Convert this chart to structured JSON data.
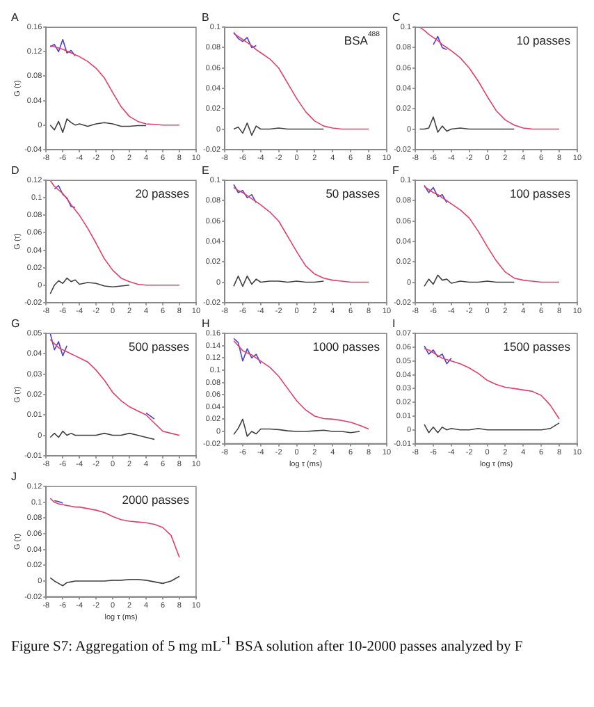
{
  "chart_data": [
    {
      "type": "line",
      "title": "A",
      "ylabel": "G (τ)",
      "x": [
        -7.5,
        -7,
        -6.5,
        -6,
        -5.5,
        -5,
        -4.5,
        -4,
        -3,
        -2,
        -1,
        0,
        1,
        2,
        3,
        4,
        5,
        6,
        7,
        8
      ],
      "xlim": [
        -8,
        10
      ],
      "xticks": [
        -8,
        -6,
        -4,
        -2,
        0,
        2,
        4,
        6,
        8,
        10
      ],
      "ylim": [
        -0.04,
        0.16
      ],
      "yticks": [
        -0.04,
        0,
        0.04,
        0.08,
        0.12,
        0.16
      ],
      "grid": false,
      "legend": false,
      "marker": "none",
      "series": [
        {
          "color": "#e0406a",
          "values": [
            0.13,
            0.128,
            0.126,
            0.124,
            0.121,
            0.118,
            0.115,
            0.112,
            0.104,
            0.093,
            0.077,
            0.053,
            0.03,
            0.014,
            0.006,
            0.002,
            0.001,
            0,
            0,
            0
          ]
        },
        {
          "color": "#4a3fd0",
          "values": [
            0.128,
            0.132,
            0.12,
            0.14,
            0.118,
            0.122,
            0.113,
            null,
            null,
            null,
            null,
            null,
            null,
            null,
            null,
            null,
            null,
            null,
            null,
            null
          ]
        },
        {
          "color": "#404040",
          "values": [
            0,
            -0.008,
            0.006,
            -0.012,
            0.01,
            0.004,
            0,
            0.002,
            -0.002,
            0.002,
            0.004,
            0.002,
            -0.002,
            -0.002,
            -0.001,
            -0.001,
            null,
            null,
            null,
            null
          ]
        }
      ]
    },
    {
      "type": "line",
      "title": "B",
      "annotations": [
        "BSA$^{488}$"
      ],
      "x": [
        -7,
        -6.5,
        -6,
        -5.5,
        -5,
        -4.5,
        -4,
        -3,
        -2,
        -1,
        0,
        1,
        2,
        3,
        4,
        5,
        6,
        7,
        8
      ],
      "xlim": [
        -8,
        10
      ],
      "xticks": [
        -8,
        -6,
        -4,
        -2,
        0,
        2,
        4,
        6,
        8,
        10
      ],
      "ylim": [
        -0.02,
        0.1
      ],
      "yticks": [
        -0.02,
        0,
        0.02,
        0.04,
        0.06,
        0.08,
        0.1
      ],
      "grid": false,
      "legend": false,
      "marker": "none",
      "series": [
        {
          "color": "#e0406a",
          "values": [
            0.094,
            0.091,
            0.088,
            0.085,
            0.082,
            0.078,
            0.075,
            0.069,
            0.06,
            0.045,
            0.03,
            0.017,
            0.008,
            0.003,
            0.001,
            0,
            0,
            0,
            0
          ]
        },
        {
          "color": "#4a3fd0",
          "values": [
            0.095,
            0.089,
            0.086,
            0.09,
            0.08,
            0.082,
            null,
            null,
            null,
            null,
            null,
            null,
            null,
            null,
            null,
            null,
            null,
            null,
            null
          ]
        },
        {
          "color": "#404040",
          "values": [
            0,
            0.002,
            -0.004,
            0.006,
            -0.006,
            0.003,
            0,
            0,
            0.001,
            0,
            0,
            0,
            0,
            0,
            null,
            null,
            null,
            null,
            null
          ]
        }
      ]
    },
    {
      "type": "line",
      "title": "C",
      "annotations": [
        "10 passes"
      ],
      "x": [
        -7.5,
        -7,
        -6.5,
        -6,
        -5.5,
        -5,
        -4.5,
        -4,
        -3,
        -2,
        -1,
        0,
        1,
        2,
        3,
        4,
        5,
        6,
        7,
        8
      ],
      "xlim": [
        -8,
        10
      ],
      "xticks": [
        -8,
        -6,
        -4,
        -2,
        0,
        2,
        4,
        6,
        8,
        10
      ],
      "ylim": [
        -0.02,
        0.1
      ],
      "yticks": [
        -0.02,
        0,
        0.02,
        0.04,
        0.06,
        0.08,
        0.1
      ],
      "grid": false,
      "legend": false,
      "marker": "none",
      "series": [
        {
          "color": "#e0406a",
          "values": [
            0.1,
            0.097,
            0.093,
            0.09,
            0.087,
            0.083,
            0.08,
            0.077,
            0.07,
            0.06,
            0.047,
            0.032,
            0.018,
            0.009,
            0.004,
            0.001,
            0,
            0,
            0,
            0
          ]
        },
        {
          "color": "#4a3fd0",
          "values": [
            null,
            null,
            null,
            0.083,
            0.091,
            0.08,
            0.078,
            null,
            null,
            null,
            null,
            null,
            null,
            null,
            null,
            null,
            null,
            null,
            null,
            null
          ]
        },
        {
          "color": "#404040",
          "values": [
            0,
            0,
            0.001,
            0.012,
            -0.003,
            0.003,
            -0.002,
            0,
            0.001,
            0,
            0,
            0,
            0,
            0,
            0,
            null,
            null,
            null,
            null,
            null
          ]
        }
      ]
    },
    {
      "type": "line",
      "title": "D",
      "ylabel": "G (τ)",
      "annotations": [
        "20 passes"
      ],
      "x": [
        -7.5,
        -7,
        -6.5,
        -6,
        -5.5,
        -5,
        -4.5,
        -4,
        -3,
        -2,
        -1,
        0,
        1,
        2,
        3,
        4,
        5,
        6,
        7,
        8
      ],
      "xlim": [
        -8,
        10
      ],
      "xticks": [
        -8,
        -6,
        -4,
        -2,
        0,
        2,
        4,
        6,
        8,
        10
      ],
      "ylim": [
        -0.02,
        0.12
      ],
      "yticks": [
        -0.02,
        0,
        0.02,
        0.04,
        0.06,
        0.08,
        0.1,
        0.12
      ],
      "grid": false,
      "legend": false,
      "marker": "none",
      "series": [
        {
          "color": "#e0406a",
          "values": [
            0.12,
            0.113,
            0.109,
            0.105,
            0.099,
            0.092,
            0.086,
            0.08,
            0.065,
            0.048,
            0.03,
            0.017,
            0.008,
            0.004,
            0.001,
            0,
            0,
            0,
            0,
            0
          ]
        },
        {
          "color": "#4a3fd0",
          "values": [
            null,
            0.11,
            0.114,
            0.104,
            0.1,
            0.09,
            0.089,
            null,
            null,
            null,
            null,
            null,
            null,
            null,
            null,
            null,
            null,
            null,
            null,
            null
          ]
        },
        {
          "color": "#404040",
          "values": [
            -0.01,
            0,
            0.005,
            0.002,
            0.008,
            0.004,
            0.006,
            0.001,
            0.003,
            0.002,
            -0.001,
            -0.002,
            -0.001,
            0,
            null,
            null,
            null,
            null,
            null,
            null
          ]
        }
      ]
    },
    {
      "type": "line",
      "title": "E",
      "annotations": [
        "50 passes"
      ],
      "x": [
        -7,
        -6.5,
        -6,
        -5.5,
        -5,
        -4.5,
        -4,
        -3,
        -2,
        -1,
        0,
        1,
        2,
        3,
        4,
        5,
        6,
        7,
        8
      ],
      "xlim": [
        -8,
        10
      ],
      "xticks": [
        -8,
        -6,
        -4,
        -2,
        0,
        2,
        4,
        6,
        8,
        10
      ],
      "ylim": [
        -0.02,
        0.1
      ],
      "yticks": [
        -0.02,
        0,
        0.02,
        0.04,
        0.06,
        0.08,
        0.1
      ],
      "grid": false,
      "legend": false,
      "marker": "none",
      "series": [
        {
          "color": "#e0406a",
          "values": [
            0.093,
            0.09,
            0.088,
            0.085,
            0.082,
            0.079,
            0.076,
            0.069,
            0.06,
            0.045,
            0.03,
            0.016,
            0.008,
            0.004,
            0.002,
            0.001,
            0,
            0,
            0
          ]
        },
        {
          "color": "#4a3fd0",
          "values": [
            0.096,
            0.088,
            0.09,
            0.083,
            0.086,
            0.078,
            null,
            null,
            null,
            null,
            null,
            null,
            null,
            null,
            null,
            null,
            null,
            null,
            null
          ]
        },
        {
          "color": "#404040",
          "values": [
            -0.004,
            0.006,
            -0.004,
            0.006,
            -0.002,
            0.003,
            0,
            0.001,
            0.001,
            0,
            0.001,
            0,
            0,
            0.001,
            null,
            null,
            null,
            null,
            null
          ]
        }
      ]
    },
    {
      "type": "line",
      "title": "F",
      "annotations": [
        "100 passes"
      ],
      "x": [
        -7,
        -6.5,
        -6,
        -5.5,
        -5,
        -4.5,
        -4,
        -3,
        -2,
        -1,
        0,
        1,
        2,
        3,
        4,
        5,
        6,
        7,
        8
      ],
      "xlim": [
        -8,
        10
      ],
      "xticks": [
        -8,
        -6,
        -4,
        -2,
        0,
        2,
        4,
        6,
        8,
        10
      ],
      "ylim": [
        -0.02,
        0.1
      ],
      "yticks": [
        -0.02,
        0,
        0.02,
        0.04,
        0.06,
        0.08,
        0.1
      ],
      "grid": false,
      "legend": false,
      "marker": "none",
      "series": [
        {
          "color": "#e0406a",
          "values": [
            0.094,
            0.091,
            0.088,
            0.086,
            0.083,
            0.08,
            0.077,
            0.071,
            0.063,
            0.05,
            0.035,
            0.021,
            0.01,
            0.004,
            0.002,
            0.001,
            0,
            0,
            0
          ]
        },
        {
          "color": "#4a3fd0",
          "values": [
            0.095,
            0.088,
            0.093,
            0.084,
            0.086,
            0.078,
            null,
            null,
            null,
            null,
            null,
            null,
            null,
            null,
            null,
            null,
            null,
            null,
            null
          ]
        },
        {
          "color": "#404040",
          "values": [
            -0.004,
            0.003,
            -0.002,
            0.007,
            0.002,
            0.003,
            -0.001,
            0.001,
            0,
            0,
            0.001,
            0,
            0,
            0,
            null,
            null,
            null,
            null,
            null
          ]
        }
      ]
    },
    {
      "type": "line",
      "title": "G",
      "ylabel": "G (τ)",
      "annotations": [
        "500 passes"
      ],
      "x": [
        -7.5,
        -7,
        -6.5,
        -6,
        -5.5,
        -5,
        -4.5,
        -4,
        -3,
        -2,
        -1,
        0,
        1,
        2,
        3,
        4,
        5,
        6,
        7,
        8
      ],
      "xlim": [
        -8,
        10
      ],
      "xticks": [
        -8,
        -6,
        -4,
        -2,
        0,
        2,
        4,
        6,
        8,
        10
      ],
      "ylim": [
        -0.01,
        0.05
      ],
      "yticks": [
        -0.01,
        0,
        0.01,
        0.02,
        0.03,
        0.04,
        0.05
      ],
      "grid": false,
      "legend": false,
      "marker": "none",
      "series": [
        {
          "color": "#e0406a",
          "values": [
            0.047,
            0.045,
            0.043,
            0.042,
            0.041,
            0.04,
            0.039,
            0.038,
            0.036,
            0.032,
            0.027,
            0.021,
            0.017,
            0.014,
            0.012,
            0.01,
            0.006,
            0.002,
            0.001,
            0
          ]
        },
        {
          "color": "#4a3fd0",
          "values": [
            0.05,
            0.042,
            0.046,
            0.039,
            0.044,
            null,
            null,
            null,
            null,
            null,
            null,
            null,
            null,
            null,
            null,
            0.011,
            0.008,
            null,
            null,
            null
          ]
        },
        {
          "color": "#404040",
          "values": [
            -0.001,
            0.001,
            -0.001,
            0.002,
            0,
            0.001,
            0,
            0,
            0,
            0,
            0.001,
            0,
            0,
            0.001,
            0,
            -0.001,
            -0.002,
            null,
            null,
            null
          ]
        }
      ]
    },
    {
      "type": "line",
      "title": "H",
      "xlabel": "log τ (ms)",
      "annotations": [
        "1000 passes"
      ],
      "x": [
        -7,
        -6.5,
        -6,
        -5.5,
        -5,
        -4.5,
        -4,
        -3,
        -2,
        -1,
        0,
        1,
        2,
        3,
        4,
        5,
        6,
        7,
        8
      ],
      "xlim": [
        -8,
        10
      ],
      "xticks": [
        -8,
        -6,
        -4,
        -2,
        0,
        2,
        4,
        6,
        8,
        10
      ],
      "ylim": [
        -0.02,
        0.16
      ],
      "yticks": [
        -0.02,
        0,
        0.02,
        0.04,
        0.06,
        0.08,
        0.1,
        0.12,
        0.14,
        0.16
      ],
      "grid": false,
      "legend": false,
      "marker": "none",
      "series": [
        {
          "color": "#e0406a",
          "values": [
            0.148,
            0.14,
            0.132,
            0.128,
            0.125,
            0.12,
            0.115,
            0.105,
            0.09,
            0.07,
            0.05,
            0.035,
            0.025,
            0.021,
            0.02,
            0.018,
            0.015,
            0.01,
            0.004
          ]
        },
        {
          "color": "#4a3fd0",
          "values": [
            0.152,
            0.145,
            0.115,
            0.135,
            0.12,
            0.126,
            0.111,
            null,
            null,
            null,
            null,
            null,
            null,
            null,
            null,
            null,
            null,
            null,
            null
          ]
        },
        {
          "color": "#404040",
          "values": [
            -0.005,
            0.005,
            0.02,
            -0.008,
            0,
            -0.004,
            0.004,
            0.004,
            0.003,
            0.001,
            0,
            0,
            0.001,
            0.002,
            0,
            0,
            -0.002,
            0,
            null
          ]
        }
      ]
    },
    {
      "type": "line",
      "title": "I",
      "xlabel": "log τ (ms)",
      "annotations": [
        "1500 passes"
      ],
      "x": [
        -7,
        -6.5,
        -6,
        -5.5,
        -5,
        -4.5,
        -4,
        -3,
        -2,
        -1,
        0,
        1,
        2,
        3,
        4,
        5,
        6,
        7,
        8
      ],
      "xlim": [
        -8,
        10
      ],
      "xticks": [
        -8,
        -6,
        -4,
        -2,
        0,
        2,
        4,
        6,
        8,
        10
      ],
      "ylim": [
        -0.01,
        0.07
      ],
      "yticks": [
        -0.01,
        0,
        0.01,
        0.02,
        0.03,
        0.04,
        0.05,
        0.06,
        0.07
      ],
      "grid": false,
      "legend": false,
      "marker": "none",
      "series": [
        {
          "color": "#e0406a",
          "values": [
            0.059,
            0.058,
            0.056,
            0.054,
            0.052,
            0.051,
            0.05,
            0.048,
            0.045,
            0.041,
            0.036,
            0.033,
            0.031,
            0.03,
            0.029,
            0.028,
            0.025,
            0.018,
            0.008
          ]
        },
        {
          "color": "#4a3fd0",
          "values": [
            0.061,
            0.055,
            0.058,
            0.053,
            0.055,
            0.048,
            0.052,
            null,
            null,
            null,
            null,
            null,
            null,
            null,
            null,
            null,
            null,
            null,
            null
          ]
        },
        {
          "color": "#404040",
          "values": [
            0.004,
            -0.002,
            0.002,
            -0.002,
            0.002,
            0,
            0.001,
            0,
            0,
            0.001,
            0,
            0,
            0,
            0,
            0,
            0,
            0,
            0.001,
            0.005
          ]
        }
      ]
    },
    {
      "type": "line",
      "title": "J",
      "ylabel": "G (τ)",
      "xlabel": "log τ (ms)",
      "annotations": [
        "2000 passes"
      ],
      "x": [
        -7.5,
        -7,
        -6.5,
        -6,
        -5.5,
        -5,
        -4.5,
        -4,
        -3,
        -2,
        -1,
        0,
        1,
        2,
        3,
        4,
        5,
        6,
        7,
        8
      ],
      "xlim": [
        -8,
        10
      ],
      "xticks": [
        -8,
        -6,
        -4,
        -2,
        0,
        2,
        4,
        6,
        8,
        10
      ],
      "ylim": [
        -0.02,
        0.12
      ],
      "yticks": [
        -0.02,
        0,
        0.02,
        0.04,
        0.06,
        0.08,
        0.1,
        0.12
      ],
      "grid": false,
      "legend": false,
      "marker": "none",
      "series": [
        {
          "color": "#e0406a",
          "values": [
            0.105,
            0.1,
            0.098,
            0.097,
            0.096,
            0.095,
            0.094,
            0.094,
            0.092,
            0.09,
            0.087,
            0.082,
            0.078,
            0.076,
            0.075,
            0.074,
            0.072,
            0.068,
            0.058,
            0.03
          ]
        },
        {
          "color": "#4a3fd0",
          "values": [
            null,
            0.102,
            0.101,
            0.099,
            null,
            null,
            null,
            null,
            null,
            null,
            null,
            null,
            null,
            null,
            null,
            null,
            null,
            null,
            null,
            null
          ]
        },
        {
          "color": "#404040",
          "values": [
            0.004,
            0,
            -0.003,
            -0.006,
            -0.002,
            -0.001,
            0,
            0,
            0,
            0,
            0,
            0.001,
            0.001,
            0.002,
            0.002,
            0.001,
            -0.001,
            -0.003,
            0,
            0.006
          ]
        }
      ]
    },
    {
      "type": "other",
      "annotations": [
        "Figure S7: Aggregation of 5 mg mL$^{-1}$ BSA solution after 10-2000 passes analyzed by F"
      ]
    }
  ]
}
